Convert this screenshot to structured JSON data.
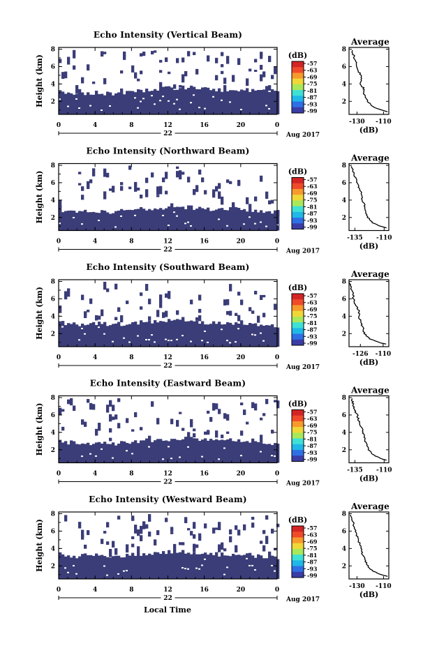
{
  "figure": {
    "xlabel": "Local Time",
    "date_suffix": "Aug 2017",
    "day_label": "22",
    "ylabel": "Height (km)",
    "cb_unit": "(dB)",
    "avg_title": "Average",
    "avg_xlabel": "(dB)"
  },
  "colors": {
    "fill": "#3b3d78",
    "colormap": [
      "#3a3da6",
      "#2f6fe6",
      "#1fb8e8",
      "#3fe0d6",
      "#a8e85a",
      "#f0d738",
      "#f79a2c",
      "#f04a2a",
      "#d42424"
    ]
  },
  "chart_data": [
    {
      "type": "heatmap",
      "title": "Echo Intensity (Vertical Beam)",
      "xlabel": "Local Time",
      "ylabel": "Height (km)",
      "x_ticks": [
        "0",
        "4",
        "8",
        "12",
        "16",
        "20",
        "0"
      ],
      "y_ticks": [
        "2",
        "4",
        "6",
        "8"
      ],
      "xlim": [
        0,
        24
      ],
      "ylim": [
        0.5,
        8.2
      ],
      "colorbar": {
        "unit": "(dB)",
        "ticks": [
          "-57",
          "-63",
          "-69",
          "-75",
          "-81",
          "-87",
          "-93",
          "-99"
        ]
      },
      "cloud_top_km": {
        "x": [
          0,
          2,
          4,
          6,
          8,
          10,
          12,
          14,
          16,
          18,
          20,
          22,
          24
        ],
        "y": [
          3.2,
          2.9,
          3.0,
          2.8,
          3.1,
          3.3,
          3.5,
          3.6,
          3.5,
          3.3,
          3.4,
          3.2,
          3.0
        ]
      },
      "average_profile": {
        "title": "Average",
        "xlabel": "(dB)",
        "x_ticks": [
          "-130",
          "-110"
        ],
        "y_ticks": [
          "2",
          "4",
          "6",
          "8"
        ],
        "xlim": [
          -136,
          -106
        ],
        "ylim": [
          0.5,
          8.2
        ],
        "height": [
          0.8,
          1.0,
          1.4,
          2.0,
          2.6,
          3.0,
          3.5,
          4.0,
          4.5,
          5.0,
          5.5,
          6.0,
          6.5,
          7.0,
          7.5,
          8.0
        ],
        "value": [
          -107,
          -112,
          -118,
          -122,
          -124,
          -125,
          -125,
          -128,
          -127,
          -127,
          -129,
          -130,
          -131,
          -132,
          -133,
          -134
        ]
      }
    },
    {
      "type": "heatmap",
      "title": "Echo Intensity (Northward Beam)",
      "xlabel": "Local Time",
      "ylabel": "Height (km)",
      "x_ticks": [
        "0",
        "4",
        "8",
        "12",
        "16",
        "20",
        "0"
      ],
      "y_ticks": [
        "2",
        "4",
        "6",
        "8"
      ],
      "xlim": [
        0,
        24
      ],
      "ylim": [
        0.5,
        8.2
      ],
      "colorbar": {
        "unit": "(dB)",
        "ticks": [
          "-57",
          "-63",
          "-69",
          "-75",
          "-81",
          "-87",
          "-93",
          "-99"
        ]
      },
      "cloud_top_km": {
        "x": [
          0,
          2,
          4,
          6,
          8,
          10,
          12,
          14,
          16,
          18,
          20,
          22,
          24
        ],
        "y": [
          2.8,
          2.6,
          2.7,
          2.6,
          2.9,
          3.0,
          3.1,
          3.2,
          3.0,
          2.9,
          3.0,
          2.8,
          2.6
        ]
      },
      "average_profile": {
        "title": "Average",
        "xlabel": "(dB)",
        "x_ticks": [
          "-135",
          "-110"
        ],
        "y_ticks": [
          "2",
          "4",
          "6",
          "8"
        ],
        "xlim": [
          -140,
          -106
        ],
        "ylim": [
          0.5,
          8.2
        ],
        "height": [
          0.8,
          1.0,
          1.4,
          2.0,
          2.6,
          3.0,
          3.5,
          4.0,
          4.5,
          5.0,
          5.5,
          6.0,
          6.5,
          7.0,
          7.5,
          8.0
        ],
        "value": [
          -108,
          -114,
          -120,
          -124,
          -126,
          -126,
          -127,
          -129,
          -129,
          -130,
          -132,
          -133,
          -134,
          -136,
          -137,
          -138
        ]
      }
    },
    {
      "type": "heatmap",
      "title": "Echo Intensity (Southward Beam)",
      "xlabel": "Local Time",
      "ylabel": "Height (km)",
      "x_ticks": [
        "0",
        "4",
        "8",
        "12",
        "16",
        "20",
        "0"
      ],
      "y_ticks": [
        "2",
        "4",
        "6",
        "8"
      ],
      "xlim": [
        0,
        24
      ],
      "ylim": [
        0.5,
        8.2
      ],
      "colorbar": {
        "unit": "(dB)",
        "ticks": [
          "-57",
          "-63",
          "-69",
          "-75",
          "-81",
          "-87",
          "-93",
          "-99"
        ]
      },
      "cloud_top_km": {
        "x": [
          0,
          2,
          4,
          6,
          8,
          10,
          12,
          14,
          16,
          18,
          20,
          22,
          24
        ],
        "y": [
          3.3,
          3.0,
          3.2,
          3.0,
          3.2,
          3.4,
          3.5,
          3.4,
          3.3,
          3.2,
          3.3,
          3.0,
          2.9
        ]
      },
      "average_profile": {
        "title": "Average",
        "xlabel": "(dB)",
        "x_ticks": [
          "-126",
          "-110"
        ],
        "y_ticks": [
          "2",
          "4",
          "6",
          "8"
        ],
        "xlim": [
          -134,
          -106
        ],
        "ylim": [
          0.5,
          8.2
        ],
        "height": [
          0.8,
          1.0,
          1.4,
          2.0,
          2.6,
          3.0,
          3.5,
          4.0,
          4.5,
          5.0,
          5.5,
          6.0,
          6.5,
          7.0,
          7.5,
          8.0
        ],
        "value": [
          -108,
          -113,
          -119,
          -123,
          -124,
          -125,
          -126,
          -127,
          -127,
          -128,
          -130,
          -131,
          -131,
          -132,
          -133,
          -134
        ]
      }
    },
    {
      "type": "heatmap",
      "title": "Echo Intensity (Eastward Beam)",
      "xlabel": "Local Time",
      "ylabel": "Height (km)",
      "x_ticks": [
        "0",
        "4",
        "8",
        "12",
        "16",
        "20",
        "0"
      ],
      "y_ticks": [
        "2",
        "4",
        "6",
        "8"
      ],
      "xlim": [
        0,
        24
      ],
      "ylim": [
        0.5,
        8.2
      ],
      "colorbar": {
        "unit": "(dB)",
        "ticks": [
          "-57",
          "-63",
          "-69",
          "-75",
          "-81",
          "-87",
          "-93",
          "-99"
        ]
      },
      "cloud_top_km": {
        "x": [
          0,
          2,
          4,
          6,
          8,
          10,
          12,
          14,
          16,
          18,
          20,
          22,
          24
        ],
        "y": [
          3.0,
          2.7,
          2.8,
          2.7,
          2.9,
          3.1,
          3.2,
          3.3,
          3.1,
          3.0,
          3.1,
          2.8,
          2.6
        ]
      },
      "average_profile": {
        "title": "Average",
        "xlabel": "(dB)",
        "x_ticks": [
          "-135",
          "-110"
        ],
        "y_ticks": [
          "2",
          "4",
          "6",
          "8"
        ],
        "xlim": [
          -140,
          -106
        ],
        "ylim": [
          0.5,
          8.2
        ],
        "height": [
          0.8,
          1.0,
          1.4,
          2.0,
          2.6,
          3.0,
          3.5,
          4.0,
          4.5,
          5.0,
          5.5,
          6.0,
          6.5,
          7.0,
          7.5,
          8.0
        ],
        "value": [
          -108,
          -113,
          -119,
          -123,
          -125,
          -126,
          -127,
          -128,
          -129,
          -131,
          -132,
          -133,
          -135,
          -136,
          -137,
          -138
        ]
      }
    },
    {
      "type": "heatmap",
      "title": "Echo Intensity (Westward Beam)",
      "xlabel": "Local Time",
      "ylabel": "Height (km)",
      "x_ticks": [
        "0",
        "4",
        "8",
        "12",
        "16",
        "20",
        "0"
      ],
      "y_ticks": [
        "2",
        "4",
        "6",
        "8"
      ],
      "xlim": [
        0,
        24
      ],
      "ylim": [
        0.5,
        8.2
      ],
      "colorbar": {
        "unit": "(dB)",
        "ticks": [
          "-57",
          "-63",
          "-69",
          "-75",
          "-81",
          "-87",
          "-93",
          "-99"
        ]
      },
      "cloud_top_km": {
        "x": [
          0,
          2,
          4,
          6,
          8,
          10,
          12,
          14,
          16,
          18,
          20,
          22,
          24
        ],
        "y": [
          3.4,
          3.1,
          3.3,
          3.1,
          3.3,
          3.5,
          3.6,
          3.5,
          3.4,
          3.3,
          3.4,
          3.1,
          3.0
        ]
      },
      "average_profile": {
        "title": "Average",
        "xlabel": "(dB)",
        "x_ticks": [
          "-130",
          "-110"
        ],
        "y_ticks": [
          "2",
          "4",
          "6",
          "8"
        ],
        "xlim": [
          -136,
          -106
        ],
        "ylim": [
          0.5,
          8.2
        ],
        "height": [
          0.8,
          1.0,
          1.4,
          2.0,
          2.6,
          3.0,
          3.5,
          4.0,
          4.5,
          5.0,
          5.5,
          6.0,
          6.5,
          7.0,
          7.5,
          8.0
        ],
        "value": [
          -107,
          -112,
          -118,
          -122,
          -124,
          -125,
          -126,
          -127,
          -128,
          -129,
          -130,
          -131,
          -132,
          -133,
          -134,
          -135
        ]
      }
    }
  ]
}
